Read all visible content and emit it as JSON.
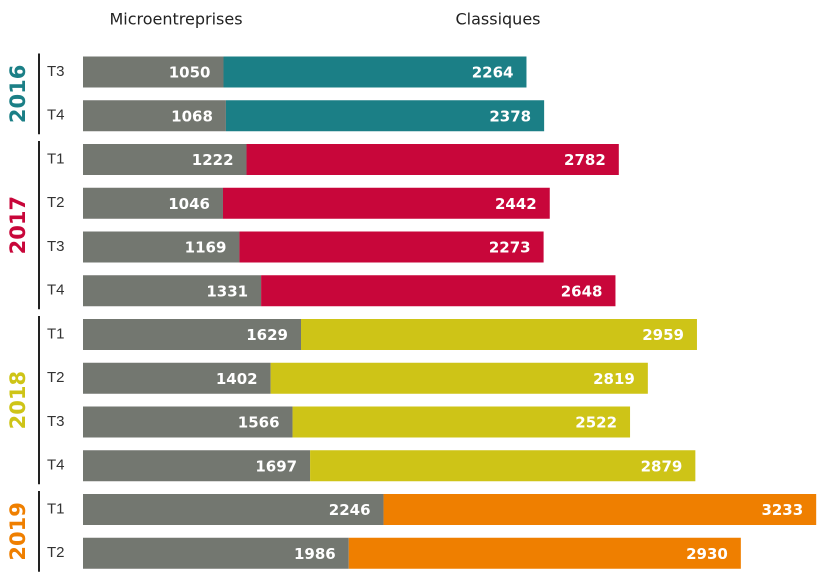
{
  "chart_data": {
    "type": "bar",
    "orientation": "horizontal",
    "stacked": true,
    "xlim": [
      0,
      5500
    ],
    "series": [
      {
        "name": "Microentreprises",
        "color": "#737770"
      },
      {
        "name": "Classiques"
      }
    ],
    "groups": [
      {
        "label": "2016",
        "color": "#1b7f86",
        "categories": [
          "T3",
          "T4"
        ],
        "series": [
          {
            "values": [
              1050,
              1068
            ]
          },
          {
            "values": [
              2264,
              2378
            ]
          }
        ]
      },
      {
        "label": "2017",
        "color": "#c8063a",
        "categories": [
          "T1",
          "T2",
          "T3",
          "T4"
        ],
        "series": [
          {
            "values": [
              1222,
              1046,
              1169,
              1331
            ]
          },
          {
            "values": [
              2782,
              2442,
              2273,
              2648
            ]
          }
        ]
      },
      {
        "label": "2018",
        "color": "#cec417",
        "categories": [
          "T1",
          "T2",
          "T3",
          "T4"
        ],
        "series": [
          {
            "values": [
              1629,
              1402,
              1566,
              1697
            ]
          },
          {
            "values": [
              2959,
              2819,
              2522,
              2879
            ]
          }
        ]
      },
      {
        "label": "2019",
        "color": "#ef7f00",
        "categories": [
          "T1",
          "T2"
        ],
        "series": [
          {
            "values": [
              2246,
              1986
            ]
          },
          {
            "values": [
              3233,
              2930
            ]
          }
        ]
      }
    ]
  }
}
